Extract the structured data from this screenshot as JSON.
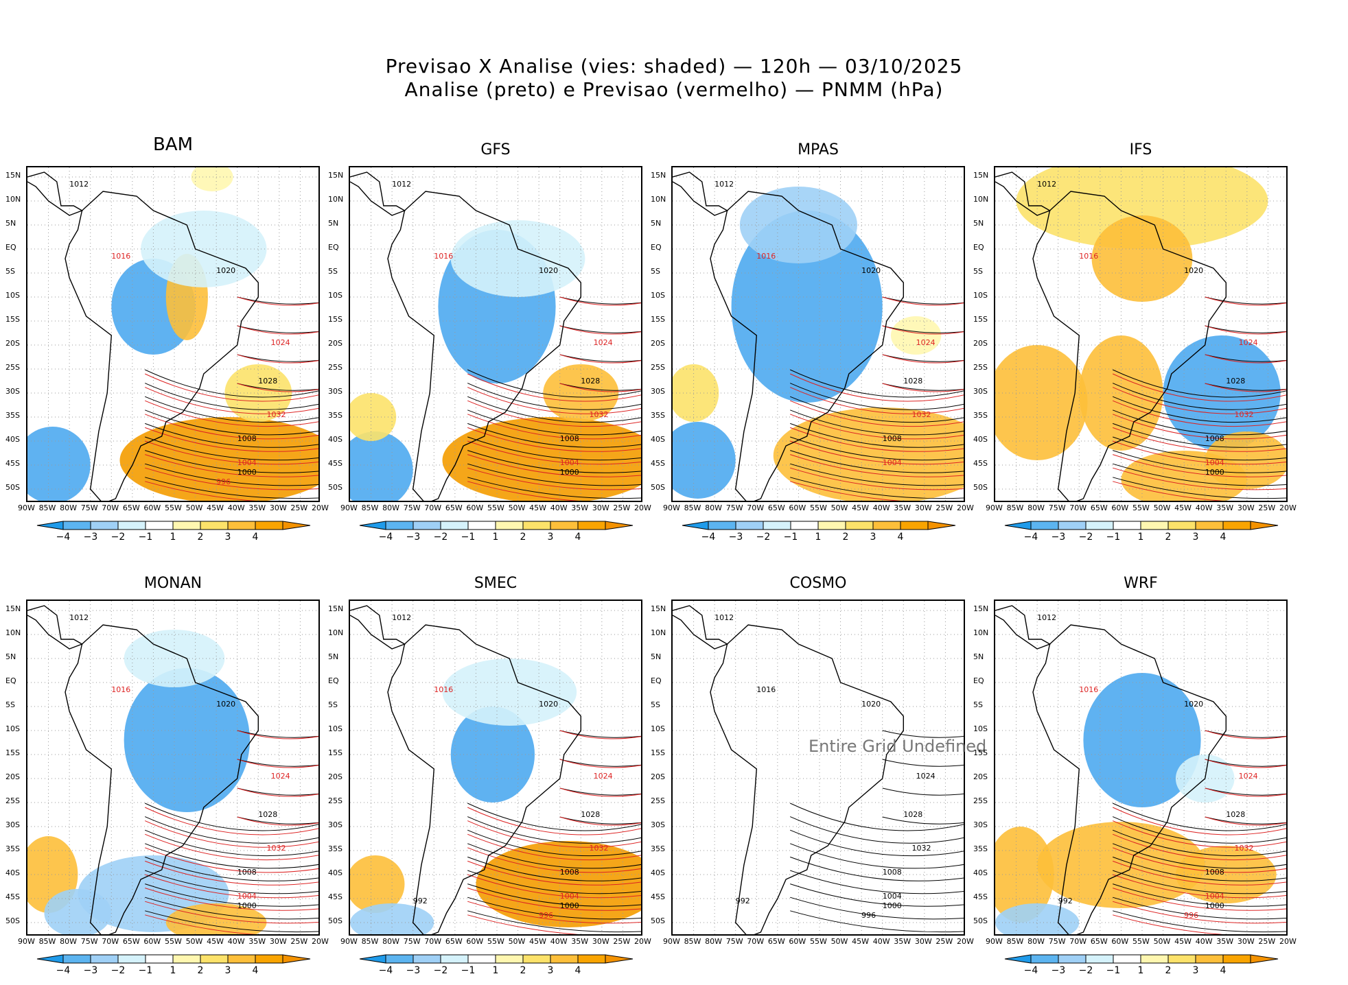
{
  "title_line1": "Previsao X Analise (vies: shaded) — 120h — 03/10/2025",
  "title_line2": "Analise (preto) e Previsao (vermelho) — PNMM (hPa)",
  "lat_ticks": [
    "15N",
    "10N",
    "5N",
    "EQ",
    "5S",
    "10S",
    "15S",
    "20S",
    "25S",
    "30S",
    "35S",
    "40S",
    "45S",
    "50S"
  ],
  "lon_ticks": [
    "90W",
    "85W",
    "80W",
    "75W",
    "70W",
    "65W",
    "60W",
    "55W",
    "50W",
    "45W",
    "40W",
    "35W",
    "30W",
    "25W",
    "20W"
  ],
  "colorbar": {
    "labels": [
      "−4",
      "−3",
      "−2",
      "−1",
      "1",
      "2",
      "3",
      "4"
    ],
    "colors": [
      "#1f9bea",
      "#5cb4f0",
      "#9fd0f6",
      "#d5f2fb",
      "#ffffff",
      "#fff7b0",
      "#fce26a",
      "#fdbf3a",
      "#f9a400",
      "#f49200"
    ]
  },
  "chart_data": {
    "type": "heatmap",
    "title": "Previsao X Analise (vies: shaded) — 120h — 03/10/2025",
    "subtitle": "Analise (preto) e Previsao (vermelho) — PNMM (hPa)",
    "variable": "PNMM (hPa)",
    "bias_levels": [
      -4,
      -3,
      -2,
      -1,
      1,
      2,
      3,
      4
    ],
    "lon_range": [
      -90,
      -20
    ],
    "lat_range": [
      -53,
      17
    ],
    "panels": [
      {
        "name": "BAM",
        "bias": "mixed",
        "isobars": [
          "1012",
          "1016",
          "1020",
          "1024",
          "1028",
          "1032",
          "1008",
          "1004",
          "1000",
          "996"
        ]
      },
      {
        "name": "GFS",
        "bias": "mostly negative over continent",
        "isobars": [
          "1012",
          "1016",
          "1020",
          "1024",
          "1028",
          "1032",
          "1008",
          "1004",
          "1000"
        ]
      },
      {
        "name": "MPAS",
        "bias": "negative over continent",
        "isobars": [
          "1012",
          "1016",
          "1020",
          "1024",
          "1028",
          "1032",
          "1008",
          "1004"
        ]
      },
      {
        "name": "IFS",
        "bias": "positive north and southwest",
        "isobars": [
          "1012",
          "1016",
          "1020",
          "1024",
          "1028",
          "1032",
          "1008",
          "1004",
          "1000"
        ]
      },
      {
        "name": "MONAN",
        "bias": "mixed",
        "isobars": [
          "1012",
          "1016",
          "1020",
          "1024",
          "1028",
          "1032",
          "1008",
          "1004",
          "1000"
        ]
      },
      {
        "name": "SMEC",
        "bias": "mixed",
        "isobars": [
          "1012",
          "1016",
          "1020",
          "1024",
          "1028",
          "1032",
          "1008",
          "1004",
          "1000",
          "996",
          "992"
        ]
      },
      {
        "name": "COSMO",
        "bias": "undefined",
        "isobars": [
          "1012",
          "1016",
          "1020",
          "1024",
          "1028",
          "1032",
          "1008",
          "1004",
          "1000",
          "996",
          "992"
        ]
      },
      {
        "name": "WRF",
        "bias": "mixed",
        "isobars": [
          "1012",
          "1016",
          "1020",
          "1024",
          "1028",
          "1032",
          "1008",
          "1004",
          "1000",
          "996",
          "992"
        ]
      }
    ]
  },
  "panels": [
    {
      "name": "BAM"
    },
    {
      "name": "GFS"
    },
    {
      "name": "MPAS"
    },
    {
      "name": "IFS"
    },
    {
      "name": "MONAN"
    },
    {
      "name": "SMEC"
    },
    {
      "name": "COSMO",
      "message": "Entire Grid Undefined"
    },
    {
      "name": "WRF"
    }
  ]
}
